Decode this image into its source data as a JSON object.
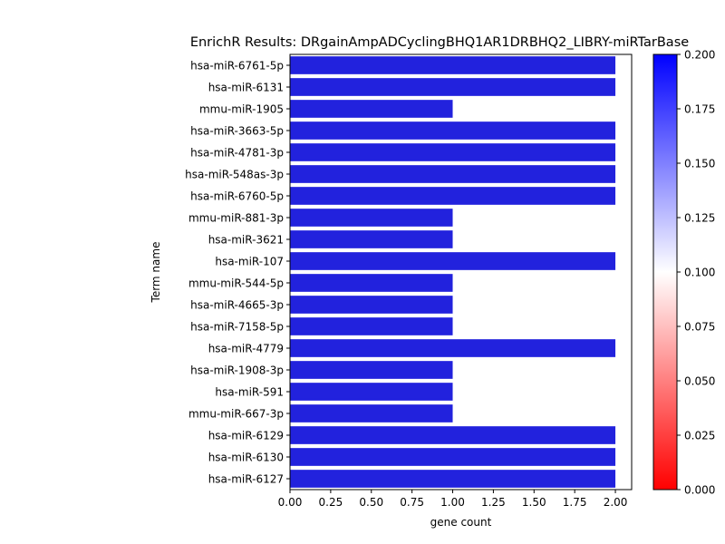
{
  "chart_data": {
    "type": "bar",
    "orientation": "horizontal",
    "title": "EnrichR Results: DRgainAmpADCyclingBHQ1AR1DRBHQ2_LIBRY-miRTarBase",
    "xlabel": "gene count",
    "ylabel": "Term name",
    "xlim": [
      0,
      2.1
    ],
    "xticks": [
      "0.00",
      "0.25",
      "0.50",
      "0.75",
      "1.00",
      "1.25",
      "1.50",
      "1.75",
      "2.00"
    ],
    "categories": [
      "hsa-miR-6761-5p",
      "hsa-miR-6131",
      "mmu-miR-1905",
      "hsa-miR-3663-5p",
      "hsa-miR-4781-3p",
      "hsa-miR-548as-3p",
      "hsa-miR-6760-5p",
      "mmu-miR-881-3p",
      "hsa-miR-3621",
      "hsa-miR-107",
      "mmu-miR-544-5p",
      "hsa-miR-4665-3p",
      "hsa-miR-7158-5p",
      "hsa-miR-4779",
      "hsa-miR-1908-3p",
      "hsa-miR-591",
      "mmu-miR-667-3p",
      "hsa-miR-6129",
      "hsa-miR-6130",
      "hsa-miR-6127"
    ],
    "values": [
      2,
      2,
      1,
      2,
      2,
      2,
      2,
      1,
      1,
      2,
      1,
      1,
      1,
      2,
      1,
      1,
      1,
      2,
      2,
      2
    ],
    "bar_color": "#2222dd",
    "colorbar": {
      "cmap": "bwr_r",
      "range": [
        0.0,
        0.2
      ],
      "ticks": [
        "0.000",
        "0.025",
        "0.050",
        "0.075",
        "0.100",
        "0.125",
        "0.150",
        "0.175",
        "0.200"
      ],
      "color_low": "#ff0000",
      "color_mid": "#ffffff",
      "color_high": "#0000ff"
    },
    "grid": false,
    "legend": "none"
  }
}
